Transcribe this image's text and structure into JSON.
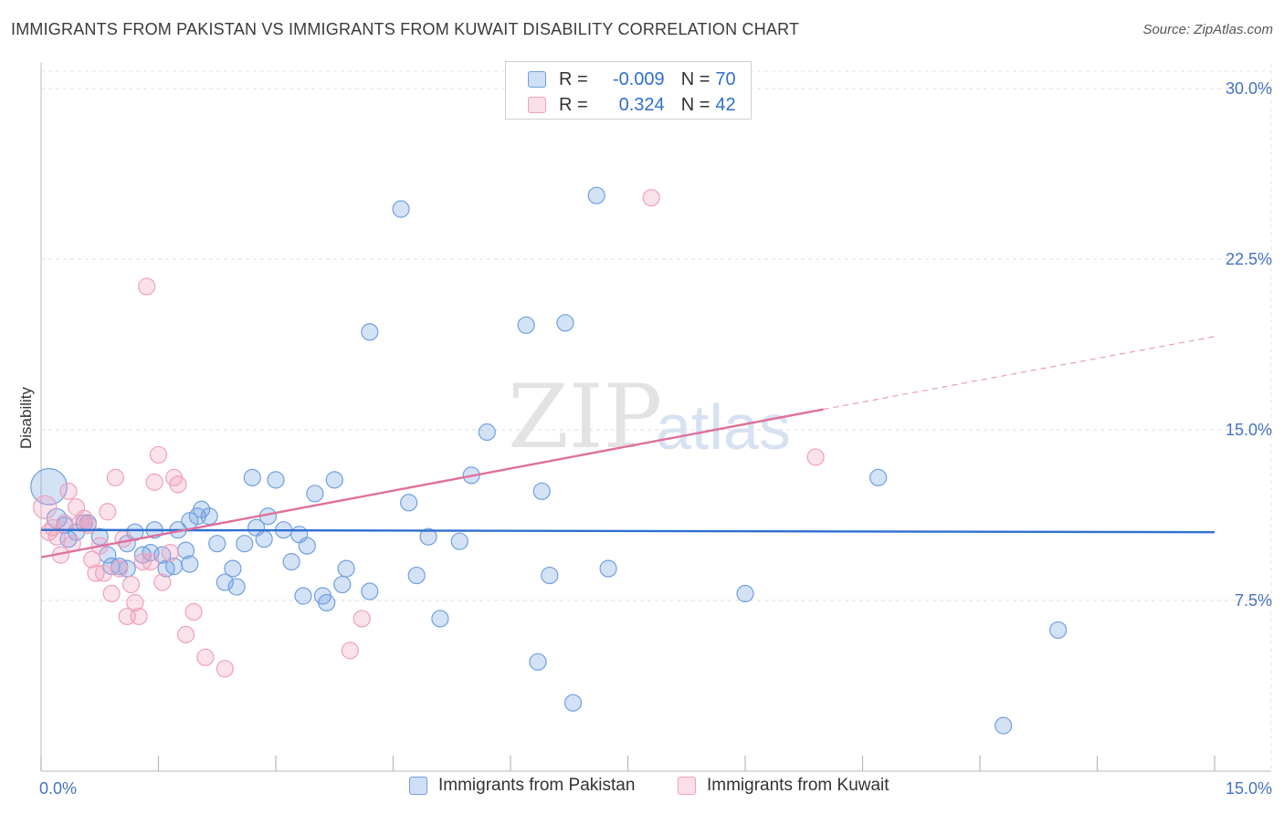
{
  "title": "IMMIGRANTS FROM PAKISTAN VS IMMIGRANTS FROM KUWAIT DISABILITY CORRELATION CHART",
  "source": "Source: ZipAtlas.com",
  "watermark": {
    "zip": "ZIP",
    "atlas": "atlas"
  },
  "legend": {
    "rows": [
      {
        "r_label": "R =",
        "r_value": "-0.009",
        "n_label": "N =",
        "n_value": "70",
        "color": "#6fa0e0"
      },
      {
        "r_label": "R =",
        "r_value": "0.324",
        "n_label": "N =",
        "n_value": "42",
        "color": "#f0a0bc"
      }
    ]
  },
  "bottom_legend": [
    {
      "label": "Immigrants from Pakistan",
      "color": "#6fa0e0"
    },
    {
      "label": "Immigrants from Kuwait",
      "color": "#f0a0bc"
    }
  ],
  "chart_data": {
    "type": "scatter",
    "title": "IMMIGRANTS FROM PAKISTAN VS IMMIGRANTS FROM KUWAIT DISABILITY CORRELATION CHART",
    "xlabel": "",
    "ylabel": "Disability",
    "xlim": [
      0,
      15
    ],
    "ylim": [
      0,
      30
    ],
    "x_tick_labels": [
      "0.0%",
      "15.0%"
    ],
    "y_ticks": [
      7.5,
      15.0,
      22.5,
      30.0
    ],
    "y_tick_labels": [
      "7.5%",
      "15.0%",
      "22.5%",
      "30.0%"
    ],
    "grid": true,
    "series": [
      {
        "name": "Immigrants from Pakistan",
        "color": "#6fa0e0",
        "fill": "rgba(111,160,224,0.30)",
        "trend": {
          "x0": 0.0,
          "y0": 10.6,
          "x1": 15.0,
          "y1": 10.5,
          "dashed_to": null
        },
        "points": [
          [
            0.1,
            12.5,
            2.2
          ],
          [
            0.2,
            11.1,
            1.2
          ],
          [
            0.3,
            10.8,
            1
          ],
          [
            0.35,
            10.2,
            1
          ],
          [
            0.45,
            10.5,
            1
          ],
          [
            0.6,
            10.9,
            1
          ],
          [
            0.75,
            10.3,
            1
          ],
          [
            0.85,
            9.5,
            1
          ],
          [
            0.9,
            9.0,
            1
          ],
          [
            1.0,
            9.0,
            1
          ],
          [
            1.1,
            8.9,
            1
          ],
          [
            1.1,
            10.0,
            1
          ],
          [
            1.2,
            10.5,
            1
          ],
          [
            1.3,
            9.5,
            1
          ],
          [
            1.4,
            9.6,
            1
          ],
          [
            1.45,
            10.6,
            1
          ],
          [
            1.55,
            9.5,
            1
          ],
          [
            1.6,
            8.9,
            1
          ],
          [
            1.7,
            9.0,
            1
          ],
          [
            1.75,
            10.6,
            1
          ],
          [
            1.85,
            9.7,
            1
          ],
          [
            1.9,
            9.1,
            1
          ],
          [
            2.0,
            11.2,
            1
          ],
          [
            2.05,
            11.5,
            1
          ],
          [
            2.15,
            11.2,
            1
          ],
          [
            2.25,
            10.0,
            1
          ],
          [
            2.35,
            8.3,
            1
          ],
          [
            2.45,
            8.9,
            1
          ],
          [
            2.5,
            8.1,
            1
          ],
          [
            2.6,
            10.0,
            1
          ],
          [
            2.7,
            12.9,
            1
          ],
          [
            2.75,
            10.7,
            1
          ],
          [
            2.85,
            10.2,
            1
          ],
          [
            2.9,
            11.2,
            1
          ],
          [
            3.0,
            12.8,
            1
          ],
          [
            3.1,
            10.6,
            1
          ],
          [
            3.2,
            9.2,
            1
          ],
          [
            3.3,
            10.4,
            1
          ],
          [
            3.35,
            7.7,
            1
          ],
          [
            3.4,
            9.9,
            1
          ],
          [
            3.5,
            12.2,
            1
          ],
          [
            3.6,
            7.7,
            1
          ],
          [
            3.65,
            7.4,
            1
          ],
          [
            3.75,
            12.8,
            1
          ],
          [
            3.85,
            8.2,
            1
          ],
          [
            3.9,
            8.9,
            1
          ],
          [
            4.2,
            19.3,
            1
          ],
          [
            4.2,
            7.9,
            1
          ],
          [
            4.6,
            24.7,
            1
          ],
          [
            4.7,
            11.8,
            1
          ],
          [
            4.8,
            8.6,
            1
          ],
          [
            4.95,
            10.3,
            1
          ],
          [
            5.1,
            6.7,
            1
          ],
          [
            5.35,
            10.1,
            1
          ],
          [
            5.5,
            13.0,
            1
          ],
          [
            5.7,
            14.9,
            1
          ],
          [
            6.2,
            19.6,
            1
          ],
          [
            6.35,
            4.8,
            1
          ],
          [
            6.4,
            12.3,
            1
          ],
          [
            6.5,
            8.6,
            1
          ],
          [
            6.7,
            19.7,
            1
          ],
          [
            6.8,
            3.0,
            1
          ],
          [
            7.1,
            25.3,
            1
          ],
          [
            7.25,
            8.9,
            1
          ],
          [
            9.0,
            7.8,
            1
          ],
          [
            10.7,
            12.9,
            1
          ],
          [
            12.3,
            2.0,
            1
          ],
          [
            13.0,
            6.2,
            1
          ],
          [
            0.55,
            10.9,
            1
          ],
          [
            1.9,
            11.0,
            1
          ]
        ]
      },
      {
        "name": "Immigrants from Kuwait",
        "color": "#f0a0bc",
        "fill": "rgba(240,160,188,0.30)",
        "trend": {
          "x0": 0.0,
          "y0": 9.4,
          "x1": 10.0,
          "y1": 15.9,
          "dashed_to": [
            15.0,
            19.1
          ]
        },
        "points": [
          [
            0.05,
            11.6,
            1.4
          ],
          [
            0.1,
            10.5,
            1
          ],
          [
            0.15,
            10.7,
            1
          ],
          [
            0.2,
            10.3,
            1
          ],
          [
            0.25,
            9.5,
            1
          ],
          [
            0.3,
            10.9,
            1
          ],
          [
            0.35,
            12.3,
            1
          ],
          [
            0.4,
            10.0,
            1
          ],
          [
            0.45,
            11.6,
            1
          ],
          [
            0.5,
            10.9,
            1
          ],
          [
            0.55,
            11.1,
            1
          ],
          [
            0.6,
            10.8,
            1
          ],
          [
            0.65,
            9.3,
            1
          ],
          [
            0.7,
            8.7,
            1
          ],
          [
            0.75,
            9.9,
            1
          ],
          [
            0.8,
            8.7,
            1
          ],
          [
            0.85,
            11.4,
            1
          ],
          [
            0.9,
            7.8,
            1
          ],
          [
            0.95,
            12.9,
            1
          ],
          [
            1.0,
            8.9,
            1
          ],
          [
            1.05,
            10.2,
            1
          ],
          [
            1.1,
            6.8,
            1
          ],
          [
            1.15,
            8.2,
            1
          ],
          [
            1.2,
            7.4,
            1
          ],
          [
            1.25,
            6.8,
            1
          ],
          [
            1.3,
            9.2,
            1
          ],
          [
            1.35,
            21.3,
            1
          ],
          [
            1.4,
            9.2,
            1
          ],
          [
            1.45,
            12.7,
            1
          ],
          [
            1.5,
            13.9,
            1
          ],
          [
            1.55,
            8.3,
            1
          ],
          [
            1.65,
            9.6,
            1
          ],
          [
            1.7,
            12.9,
            1
          ],
          [
            1.75,
            12.6,
            1
          ],
          [
            1.85,
            6.0,
            1
          ],
          [
            1.95,
            7.0,
            1
          ],
          [
            2.1,
            5.0,
            1
          ],
          [
            2.35,
            4.5,
            1
          ],
          [
            3.95,
            5.3,
            1
          ],
          [
            4.1,
            6.7,
            1
          ],
          [
            7.8,
            25.2,
            1
          ],
          [
            9.9,
            13.8,
            1
          ]
        ]
      }
    ]
  }
}
